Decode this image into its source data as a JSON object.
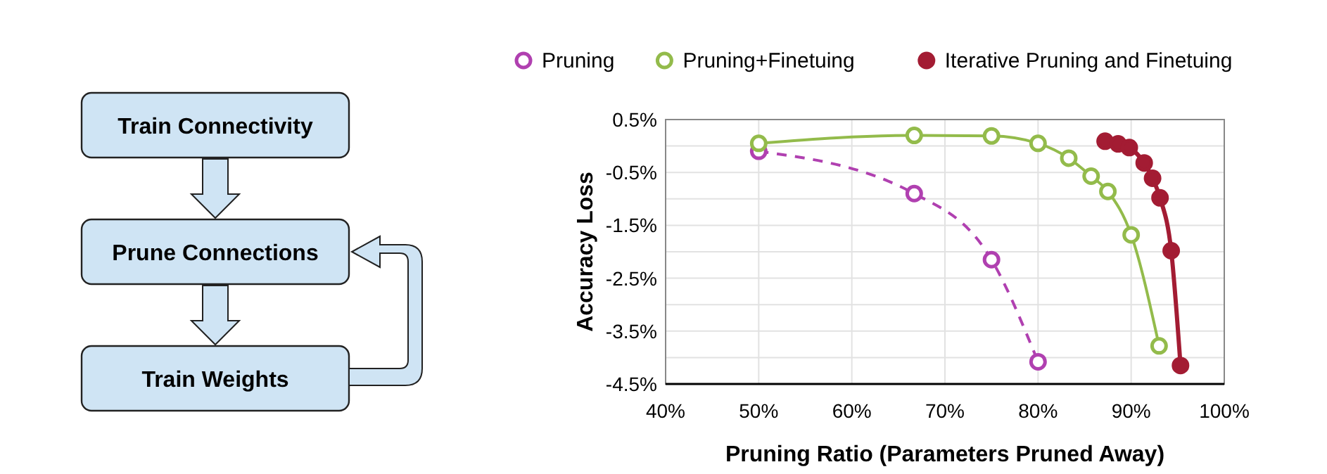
{
  "chart_data": [
    {
      "type": "other",
      "annotations": [
        "Train Connectivity",
        "Prune Connections",
        "Train Weights"
      ]
    },
    {
      "type": "line",
      "xlabel": "Pruning Ratio (Parameters Pruned Away)",
      "ylabel": "Accuracy Loss",
      "xlim": [
        40,
        100
      ],
      "ylim": [
        -4.5,
        0.5
      ],
      "xticks": [
        {
          "value": 40,
          "label": "40%"
        },
        {
          "value": 50,
          "label": "50%"
        },
        {
          "value": 60,
          "label": "60%"
        },
        {
          "value": 70,
          "label": "70%"
        },
        {
          "value": 80,
          "label": "80%"
        },
        {
          "value": 90,
          "label": "90%"
        },
        {
          "value": 100,
          "label": "100%"
        }
      ],
      "yticks": [
        {
          "value": 0.5,
          "label": "0.5%"
        },
        {
          "value": 0,
          "label": null
        },
        {
          "value": -0.5,
          "label": "-0.5%"
        },
        {
          "value": -1,
          "label": null
        },
        {
          "value": -1.5,
          "label": "-1.5%"
        },
        {
          "value": -2,
          "label": null
        },
        {
          "value": -2.5,
          "label": "-2.5%"
        },
        {
          "value": -3,
          "label": null
        },
        {
          "value": -3.5,
          "label": "-3.5%"
        },
        {
          "value": -4,
          "label": null
        },
        {
          "value": -4.5,
          "label": "-4.5%"
        }
      ],
      "grid": true,
      "legend": "top",
      "marker": "circle",
      "series": [
        {
          "name": "Pruning",
          "color": "#b040b0",
          "line_style": "dashed",
          "x": [
            50,
            66.7,
            75,
            80
          ],
          "values": [
            -0.1,
            -0.9,
            -2.15,
            -4.08
          ]
        },
        {
          "name": "Pruning+Finetuing",
          "color": "#93bb4b",
          "line_style": "solid",
          "x": [
            50,
            66.7,
            75,
            80,
            83.3,
            85.7,
            87.5,
            90,
            93
          ],
          "values": [
            0.05,
            0.2,
            0.19,
            0.05,
            -0.23,
            -0.57,
            -0.86,
            -1.68,
            -3.78
          ]
        },
        {
          "name": "Iterative Pruning and Finetuing",
          "color": "#a31c33",
          "line_style": "solid",
          "x": [
            87.2,
            88.6,
            89.8,
            91.4,
            92.3,
            93.1,
            94.3,
            95.3
          ],
          "values": [
            0.09,
            0.04,
            -0.03,
            -0.32,
            -0.61,
            -0.98,
            -1.98,
            -4.15
          ]
        }
      ]
    }
  ]
}
